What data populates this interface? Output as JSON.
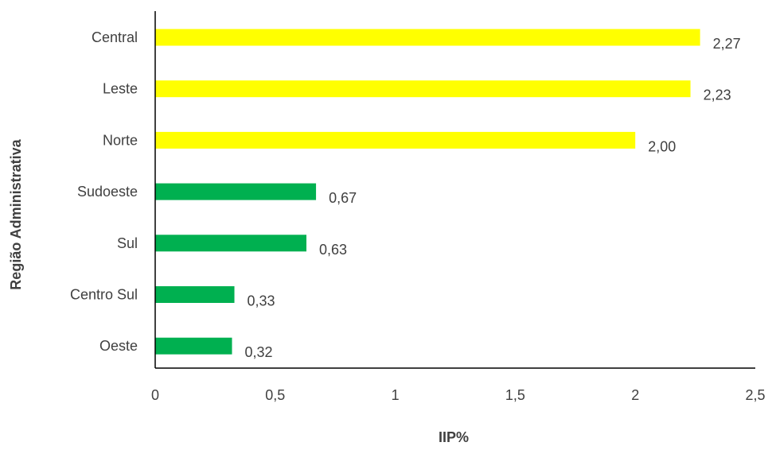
{
  "chart_data": {
    "type": "bar",
    "orientation": "horizontal",
    "categories": [
      "Central",
      "Leste",
      "Norte",
      "Sudoeste",
      "Sul",
      "Centro Sul",
      "Oeste"
    ],
    "values": [
      2.27,
      2.23,
      2.0,
      0.67,
      0.63,
      0.33,
      0.32
    ],
    "data_labels": [
      "2,27",
      "2,23",
      "2,00",
      "0,67",
      "0,63",
      "0,33",
      "0,32"
    ],
    "bar_colors": [
      "#FFFF00",
      "#FFFF00",
      "#FFFF00",
      "#00B050",
      "#00B050",
      "#00B050",
      "#00B050"
    ],
    "title": "",
    "xlabel": "IIP%",
    "ylabel": "Região Administrativa",
    "xlim": [
      0,
      2.5
    ],
    "xticks": [
      0,
      0.5,
      1,
      1.5,
      2,
      2.5
    ],
    "xtick_labels": [
      "0",
      "0,5",
      "1",
      "1,5",
      "2",
      "2,5"
    ],
    "grid": false,
    "legend": "none"
  }
}
